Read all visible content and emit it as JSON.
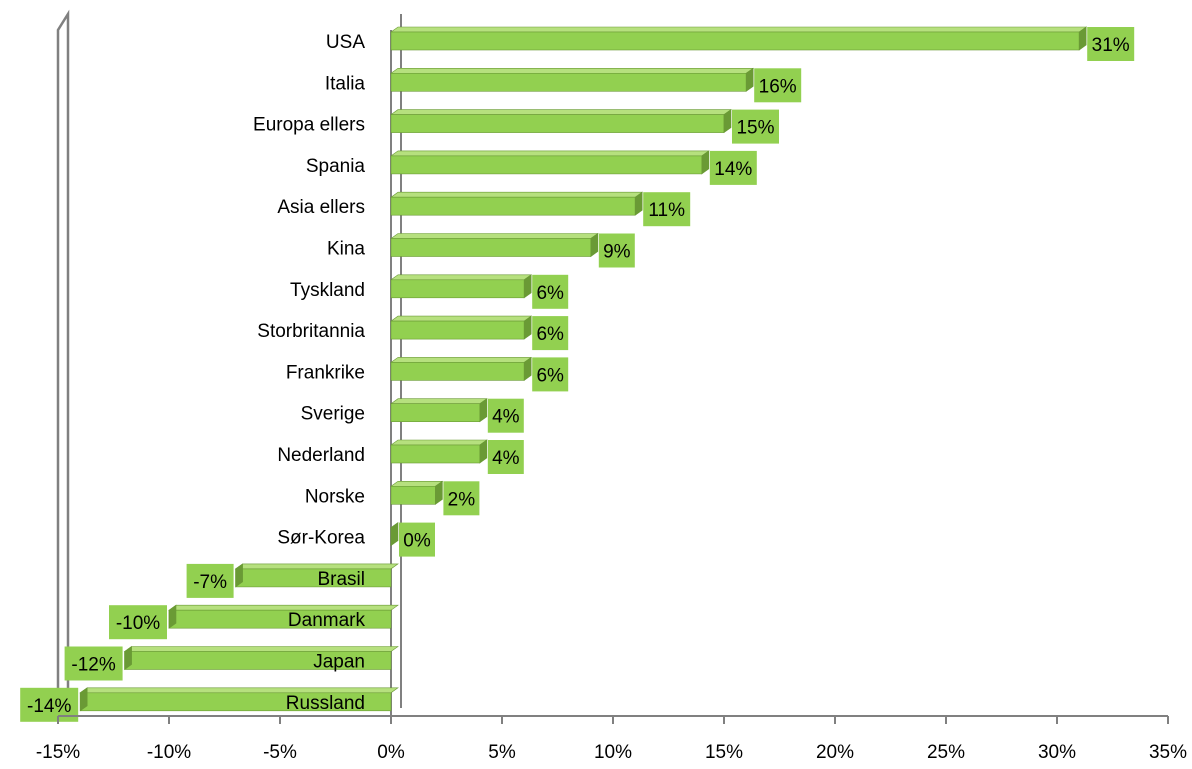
{
  "chart_data": {
    "type": "bar",
    "orientation": "horizontal",
    "categories": [
      "USA",
      "Italia",
      "Europa ellers",
      "Spania",
      "Asia ellers",
      "Kina",
      "Tyskland",
      "Storbritannia",
      "Frankrike",
      "Sverige",
      "Nederland",
      "Norske",
      "Sør-Korea",
      "Brasil",
      "Danmark",
      "Japan",
      "Russland"
    ],
    "values": [
      31,
      16,
      15,
      14,
      11,
      9,
      6,
      6,
      6,
      4,
      4,
      2,
      0,
      -7,
      -10,
      -12,
      -14
    ],
    "value_labels": [
      "31%",
      "16%",
      "15%",
      "14%",
      "11%",
      "9%",
      "6%",
      "6%",
      "6%",
      "4%",
      "4%",
      "2%",
      "0%",
      "-7%",
      "-10%",
      "-12%",
      "-14%"
    ],
    "x_ticks": [
      -15,
      -10,
      -5,
      0,
      5,
      10,
      15,
      20,
      25,
      30,
      35
    ],
    "x_tick_labels": [
      "-15%",
      "-10%",
      "-5%",
      "0%",
      "5%",
      "10%",
      "15%",
      "20%",
      "25%",
      "30%",
      "35%"
    ],
    "xlim": [
      -15,
      35
    ],
    "title": "",
    "xlabel": "",
    "ylabel": "",
    "grid": false,
    "legend": "none",
    "colors": {
      "bar": "#92d050",
      "bar_top": "#b6e07e",
      "bar_edge": "#6a9a35",
      "label_box": "#92d050",
      "axis": "#808080"
    }
  }
}
